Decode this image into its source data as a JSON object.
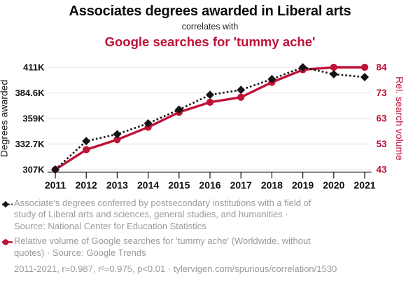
{
  "header": {
    "title": "Associates degrees awarded in Liberal arts",
    "subtitle": "correlates with",
    "title2": "Google searches for 'tummy ache'"
  },
  "chart_data": {
    "type": "line",
    "x": [
      2011,
      2012,
      2013,
      2014,
      2015,
      2016,
      2017,
      2018,
      2019,
      2020,
      2021
    ],
    "x_ticks": [
      "2011",
      "2012",
      "2013",
      "2014",
      "2015",
      "2016",
      "2017",
      "2018",
      "2019",
      "2020",
      "2021"
    ],
    "series": [
      {
        "name": "Associates degrees awarded in Liberal arts",
        "axis": "left",
        "unit": "degrees awarded",
        "color": "#141414",
        "line_style": "dashed",
        "marker": "diamond",
        "values": [
          307000,
          336000,
          343000,
          354000,
          368000,
          383000,
          388000,
          399000,
          411000,
          404000,
          401000
        ]
      },
      {
        "name": "Google searches for 'tummy ache'",
        "axis": "right",
        "unit": "relative search volume",
        "color": "#bf1238",
        "line_style": "solid",
        "marker": "circle",
        "values": [
          43,
          51,
          55,
          60,
          66,
          70,
          72,
          78,
          83,
          84,
          84
        ]
      }
    ],
    "left_axis": {
      "label": "Degrees awarded",
      "min": 307000,
      "max": 411000,
      "ticks_top_to_bottom": [
        "411K",
        "384.6K",
        "359K",
        "332.7K",
        "307K"
      ]
    },
    "right_axis": {
      "label": "Rel. search volume",
      "min": 43,
      "max": 84,
      "ticks_top_to_bottom": [
        "84",
        "73",
        "63",
        "53",
        "43"
      ]
    },
    "grid": "horizontal",
    "legend_position": "below"
  },
  "legend": {
    "series1_lines": [
      "Associate's degrees conferred by postsecondary institutions with a field of",
      "study of Liberal arts and sciences, general studies, and humanities ·",
      "Source: National Center for Education Statistics"
    ],
    "series2_lines": [
      "Relative volume of Google searches for 'tummy ache' (Worldwide, without",
      "quotes) · Source: Google Trends"
    ],
    "footnote": "2011-2021, r=0.987, r²=0.975, p<0.01 · tylervigen.com/spurious/correlation/1530"
  },
  "colors": {
    "accent_red": "#bf1238",
    "series_black": "#141414",
    "legend_text_gray": "#9a9a9a",
    "gridline_gray": "#e7e7e7"
  }
}
